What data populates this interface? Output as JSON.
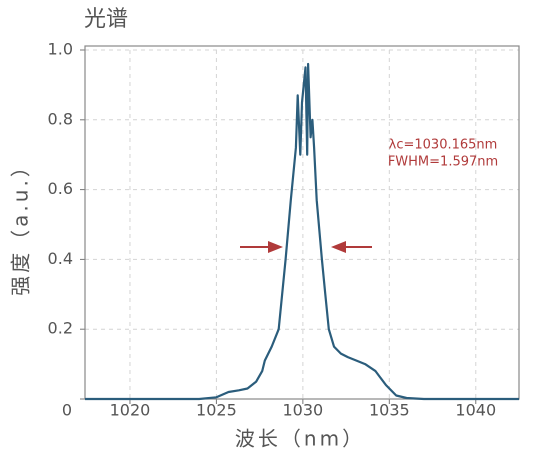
{
  "chart_data": {
    "type": "line",
    "title": "光谱",
    "x_label": "波长（nm）",
    "y_label": "强度（a.u.）",
    "annotations": [
      "λc=1030.165nm",
      "FWHM=1.597nm"
    ],
    "annotation_color": "#b03a3a",
    "xlim": [
      1017.4,
      1042.5
    ],
    "ylim": [
      0,
      1.0
    ],
    "xticks": [
      1020,
      1025,
      1030,
      1035,
      1040
    ],
    "yticks": [
      {
        "value": 0,
        "label": "0"
      },
      0.2,
      0.4,
      0.6,
      0.8,
      {
        "value": 1.0,
        "label": "1.0"
      }
    ],
    "grid": true,
    "series": [
      {
        "name": "光谱",
        "color": "#2b5d7c",
        "x": [
          1017.4,
          1020,
          1022,
          1024,
          1025,
          1025.7,
          1026.3,
          1026.8,
          1027.3,
          1027.65,
          1027.8,
          1028.2,
          1028.6,
          1029.0,
          1029.3,
          1029.6,
          1029.7,
          1029.85,
          1029.95,
          1030.15,
          1030.25,
          1030.3,
          1030.45,
          1030.55,
          1030.65,
          1030.8,
          1031.1,
          1031.3,
          1031.5,
          1031.8,
          1032.2,
          1032.6,
          1033.1,
          1033.6,
          1034.2,
          1034.8,
          1035.4,
          1036,
          1037,
          1040,
          1042.5
        ],
        "values": [
          0,
          0,
          0,
          0,
          0.005,
          0.02,
          0.025,
          0.03,
          0.05,
          0.08,
          0.11,
          0.15,
          0.2,
          0.4,
          0.57,
          0.72,
          0.87,
          0.7,
          0.85,
          0.95,
          0.7,
          0.96,
          0.75,
          0.8,
          0.72,
          0.57,
          0.4,
          0.3,
          0.2,
          0.15,
          0.13,
          0.12,
          0.11,
          0.1,
          0.08,
          0.04,
          0.01,
          0.003,
          0,
          0,
          0
        ]
      }
    ]
  }
}
